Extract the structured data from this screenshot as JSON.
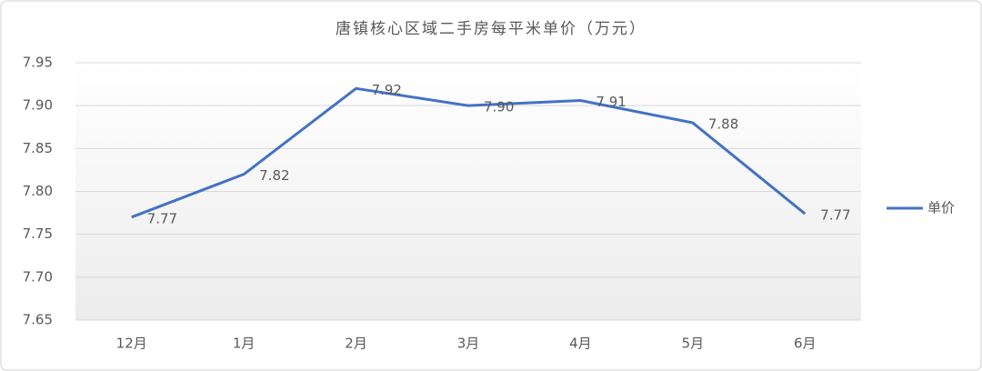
{
  "chart_data": {
    "type": "line",
    "title": "唐镇核心区域二手房每平米单价（万元）",
    "categories": [
      "12月",
      "1月",
      "2月",
      "3月",
      "4月",
      "5月",
      "6月"
    ],
    "series": [
      {
        "name": "单价",
        "color": "#4472c4",
        "values": [
          7.77,
          7.82,
          7.92,
          7.9,
          7.906,
          7.88,
          7.774
        ],
        "value_labels": [
          "7.77",
          "7.82",
          "7.92",
          "7.90",
          "7.91",
          "7.88",
          "7.77"
        ]
      }
    ],
    "ylim": [
      7.65,
      7.95
    ],
    "yticks": [
      {
        "value": 7.65,
        "label": "7.65"
      },
      {
        "value": 7.7,
        "label": "7.70"
      },
      {
        "value": 7.75,
        "label": "7.75"
      },
      {
        "value": 7.8,
        "label": "7.80"
      },
      {
        "value": 7.85,
        "label": "7.85"
      },
      {
        "value": 7.9,
        "label": "7.90"
      },
      {
        "value": 7.95,
        "label": "7.95"
      }
    ],
    "grid": true,
    "legend": "right"
  }
}
